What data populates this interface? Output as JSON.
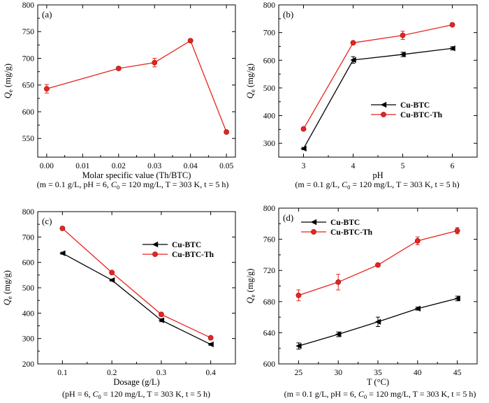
{
  "colors": {
    "black_series": "#000000",
    "red_series": "#e8231e",
    "axis": "#000000"
  },
  "chart_data": [
    {
      "type": "line",
      "panel": "(a)",
      "xlabel": "Molar specific value (Th/BTC)",
      "ylabel": "Q",
      "ylabel_sub": "e",
      "ylabel_unit": " (mg/g)",
      "xlim": [
        -0.0025,
        0.0525
      ],
      "ylim": [
        515,
        800
      ],
      "xticks": [
        0.0,
        0.01,
        0.02,
        0.03,
        0.04,
        0.05
      ],
      "xtick_labels": [
        "0.00",
        "0.01",
        "0.02",
        "0.03",
        "0.04",
        "0.05"
      ],
      "yticks": [
        550,
        600,
        650,
        700,
        750,
        800
      ],
      "ytick_labels": [
        "550",
        "600",
        "650",
        "700",
        "750",
        "800"
      ],
      "caption": {
        "pre": "(m = 0.1 g/L, pH = 6, ",
        "c": "C",
        "sub": "0",
        "post": " = 120 mg/L, T = 303 K, t = 5 h)"
      },
      "legend": [],
      "series": [
        {
          "name": "Cu-BTC-Th",
          "color": "red",
          "marker": "circle",
          "x": [
            0.0,
            0.02,
            0.03,
            0.04,
            0.05
          ],
          "y": [
            643,
            681,
            692,
            733,
            562
          ],
          "err": [
            8,
            3,
            8,
            3,
            3
          ]
        }
      ]
    },
    {
      "type": "line",
      "panel": "(b)",
      "xlabel": "pH",
      "ylabel": "Q",
      "ylabel_sub": "e",
      "ylabel_unit": " (mg/g)",
      "xlim": [
        2.5,
        6.5
      ],
      "ylim": [
        250,
        800
      ],
      "xticks": [
        3,
        4,
        5,
        6
      ],
      "xtick_labels": [
        "3",
        "4",
        "5",
        "6"
      ],
      "yticks": [
        300,
        400,
        500,
        600,
        700,
        800
      ],
      "ytick_labels": [
        "300",
        "400",
        "500",
        "600",
        "700",
        "800"
      ],
      "caption": {
        "pre": "(m = 0.1 g/L, ",
        "c": "C",
        "sub": "0",
        "post": " = 120 mg/L, T = 303 K, t = 5 h)"
      },
      "legend": [
        "Cu-BTC",
        "Cu-BTC-Th"
      ],
      "legend_pos": "center-right",
      "series": [
        {
          "name": "Cu-BTC",
          "color": "black",
          "marker": "triangle-left",
          "x": [
            3,
            4,
            5,
            6
          ],
          "y": [
            281,
            601,
            621,
            643
          ],
          "err": [
            4,
            12,
            8,
            6
          ]
        },
        {
          "name": "Cu-BTC-Th",
          "color": "red",
          "marker": "circle",
          "x": [
            3,
            4,
            5,
            6
          ],
          "y": [
            352,
            663,
            690,
            728
          ],
          "err": [
            6,
            5,
            15,
            5
          ]
        }
      ]
    },
    {
      "type": "line",
      "panel": "(c)",
      "xlabel": "Dosage (g/L)",
      "ylabel": "Q",
      "ylabel_sub": "e",
      "ylabel_unit": " (mg/g)",
      "xlim": [
        0.05,
        0.45
      ],
      "ylim": [
        200,
        800
      ],
      "xticks": [
        0.1,
        0.2,
        0.3,
        0.4
      ],
      "xtick_labels": [
        "0.1",
        "0.2",
        "0.3",
        "0.4"
      ],
      "yticks": [
        200,
        300,
        400,
        500,
        600,
        700,
        800
      ],
      "ytick_labels": [
        "200",
        "300",
        "400",
        "500",
        "600",
        "700",
        "800"
      ],
      "caption": {
        "pre": "(pH = 6, ",
        "c": "C",
        "sub": "0",
        "post": " = 120 mg/L, T = 303 K, t = 5 h)"
      },
      "legend": [
        "Cu-BTC",
        "Cu-BTC-Th"
      ],
      "legend_pos": "top-right",
      "series": [
        {
          "name": "Cu-BTC",
          "color": "black",
          "marker": "triangle-left",
          "x": [
            0.1,
            0.2,
            0.3,
            0.4
          ],
          "y": [
            636,
            530,
            372,
            277
          ],
          "err": [
            4,
            4,
            6,
            4
          ]
        },
        {
          "name": "Cu-BTC-Th",
          "color": "red",
          "marker": "circle",
          "x": [
            0.1,
            0.2,
            0.3,
            0.4
          ],
          "y": [
            734,
            560,
            395,
            303
          ],
          "err": [
            4,
            4,
            8,
            4
          ]
        }
      ]
    },
    {
      "type": "line",
      "panel": "(d)",
      "xlabel": "T (°C)",
      "ylabel": "Q",
      "ylabel_sub": "e",
      "ylabel_unit": " (mg/g)",
      "xlim": [
        22.5,
        47.5
      ],
      "ylim": [
        600,
        800
      ],
      "xticks": [
        25,
        30,
        35,
        40,
        45
      ],
      "xtick_labels": [
        "25",
        "30",
        "35",
        "40",
        "45"
      ],
      "yticks": [
        600,
        640,
        680,
        720,
        760,
        800
      ],
      "ytick_labels": [
        "600",
        "640",
        "680",
        "720",
        "760",
        "800"
      ],
      "caption": {
        "pre": "(m = 0.1 g/L, pH = 6, ",
        "c": "C",
        "sub": "0",
        "post": " = 120 mg/L, T = 303 K, t = 5 h)"
      },
      "legend": [
        "Cu-BTC",
        "Cu-BTC-Th"
      ],
      "legend_pos": "top-left",
      "series": [
        {
          "name": "Cu-BTC",
          "color": "black",
          "marker": "triangle-left",
          "x": [
            25,
            30,
            35,
            40,
            45
          ],
          "y": [
            623,
            638,
            654,
            671,
            684
          ],
          "err": [
            4,
            3,
            6,
            2,
            3
          ]
        },
        {
          "name": "Cu-BTC-Th",
          "color": "red",
          "marker": "circle",
          "x": [
            25,
            30,
            35,
            40,
            45
          ],
          "y": [
            688,
            705,
            727,
            758,
            771
          ],
          "err": [
            7,
            10,
            2,
            5,
            4
          ]
        }
      ]
    }
  ]
}
